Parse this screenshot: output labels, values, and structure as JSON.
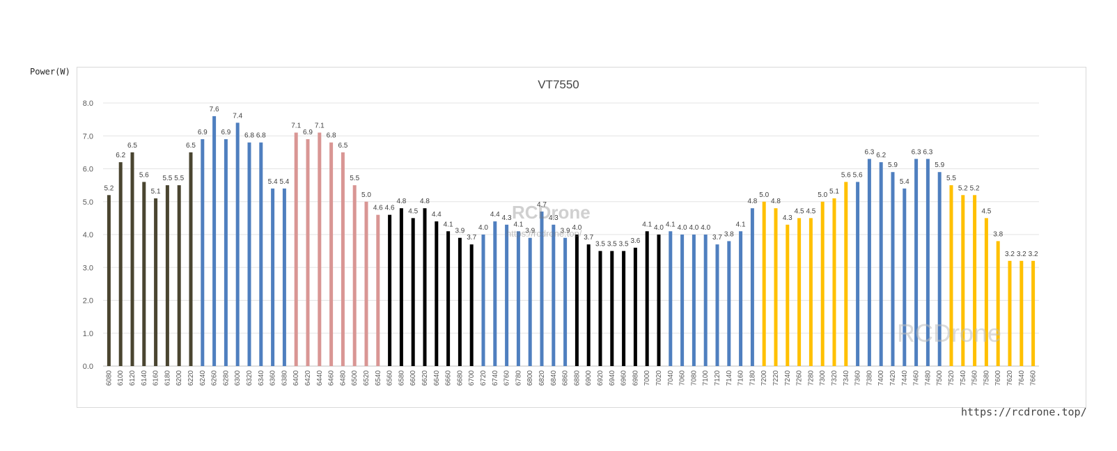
{
  "chart_data": {
    "type": "bar",
    "title": "VT7550",
    "ylabel": "Power(W)",
    "ylim": [
      0,
      8
    ],
    "yticks": [
      "0.0",
      "1.0",
      "2.0",
      "3.0",
      "4.0",
      "5.0",
      "6.0",
      "7.0",
      "8.0"
    ],
    "grid": true,
    "categories": [
      "6080",
      "6100",
      "6120",
      "6140",
      "6160",
      "6180",
      "6200",
      "6220",
      "6240",
      "6260",
      "6280",
      "6300",
      "6320",
      "6340",
      "6360",
      "6380",
      "6400",
      "6420",
      "6440",
      "6460",
      "6480",
      "6500",
      "6520",
      "6540",
      "6560",
      "6580",
      "6600",
      "6620",
      "6640",
      "6660",
      "6680",
      "6700",
      "6720",
      "6740",
      "6760",
      "6780",
      "6800",
      "6820",
      "6840",
      "6860",
      "6880",
      "6900",
      "6920",
      "6940",
      "6960",
      "6980",
      "7000",
      "7020",
      "7040",
      "7060",
      "7080",
      "7100",
      "7120",
      "7140",
      "7160",
      "7180",
      "7200",
      "7220",
      "7240",
      "7260",
      "7280",
      "7300",
      "7320",
      "7340",
      "7360",
      "7380",
      "7400",
      "7420",
      "7440",
      "7460",
      "7480",
      "7500",
      "7520",
      "7540",
      "7560",
      "7580",
      "7600",
      "7620",
      "7640",
      "7660"
    ],
    "values": [
      5.2,
      6.2,
      6.5,
      5.6,
      5.1,
      5.5,
      5.5,
      6.5,
      6.9,
      7.6,
      6.9,
      7.4,
      6.8,
      6.8,
      5.4,
      5.4,
      7.1,
      6.9,
      7.1,
      6.8,
      6.5,
      5.5,
      5.0,
      4.6,
      4.6,
      4.8,
      4.5,
      4.8,
      4.4,
      4.1,
      3.9,
      3.7,
      4.0,
      4.4,
      4.3,
      4.1,
      3.9,
      4.7,
      4.3,
      3.9,
      4.0,
      3.7,
      3.5,
      3.5,
      3.5,
      3.6,
      4.1,
      4.0,
      4.1,
      4.0,
      4.0,
      4.0,
      3.7,
      3.8,
      4.1,
      4.8,
      5.0,
      4.8,
      4.3,
      4.5,
      4.5,
      5.0,
      5.1,
      5.6,
      5.6,
      6.3,
      6.2,
      5.9,
      5.4,
      6.3,
      6.3,
      5.9,
      5.5,
      5.2,
      5.2,
      4.5,
      3.8,
      3.2,
      3.2,
      3.2
    ],
    "segments": [
      {
        "from": 0,
        "to": 7,
        "color": "#4a4530"
      },
      {
        "from": 8,
        "to": 15,
        "color": "#4f7fbf"
      },
      {
        "from": 16,
        "to": 23,
        "color": "#d99694"
      },
      {
        "from": 24,
        "to": 31,
        "color": "#000000"
      },
      {
        "from": 32,
        "to": 39,
        "color": "#4f7fbf"
      },
      {
        "from": 40,
        "to": 47,
        "color": "#000000"
      },
      {
        "from": 48,
        "to": 55,
        "color": "#4f7fbf"
      },
      {
        "from": 56,
        "to": 63,
        "color": "#ffc000"
      },
      {
        "from": 64,
        "to": 71,
        "color": "#4f7fbf"
      },
      {
        "from": 72,
        "to": 79,
        "color": "#ffc000"
      }
    ]
  },
  "watermarks": {
    "main_text": "RCDrone",
    "main_url": "https://rcdrone.top/",
    "corner_text": "RCDrone",
    "footer_url": "https://rcdrone.top/"
  }
}
